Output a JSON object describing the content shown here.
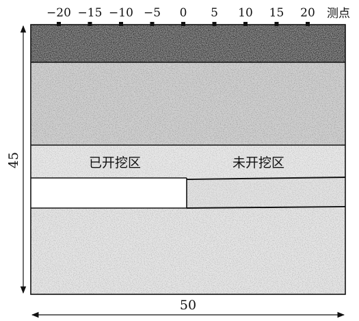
{
  "diagram": {
    "measure_points": [
      -20,
      -15,
      -10,
      -5,
      0,
      5,
      10,
      15,
      20
    ],
    "measure_point_labels": [
      "−20",
      "−15",
      "−10",
      "−5",
      "0",
      "5",
      "10",
      "15",
      "20"
    ],
    "measure_points_title": "测点",
    "zones": {
      "excavated": "已开挖区",
      "unexcavated": "未开挖区"
    },
    "dimensions": {
      "height": "45",
      "width": "50"
    },
    "colors": {
      "topsoil": "#8f8f8f",
      "upper_layer": "#cfcfcf",
      "middle_layer": "#e7e7e7",
      "unexcavated_layer": "#e2e2e2",
      "bottom_layer": "#e4e4e4",
      "excavated_void": "#ffffff",
      "outline": "#111111"
    }
  }
}
